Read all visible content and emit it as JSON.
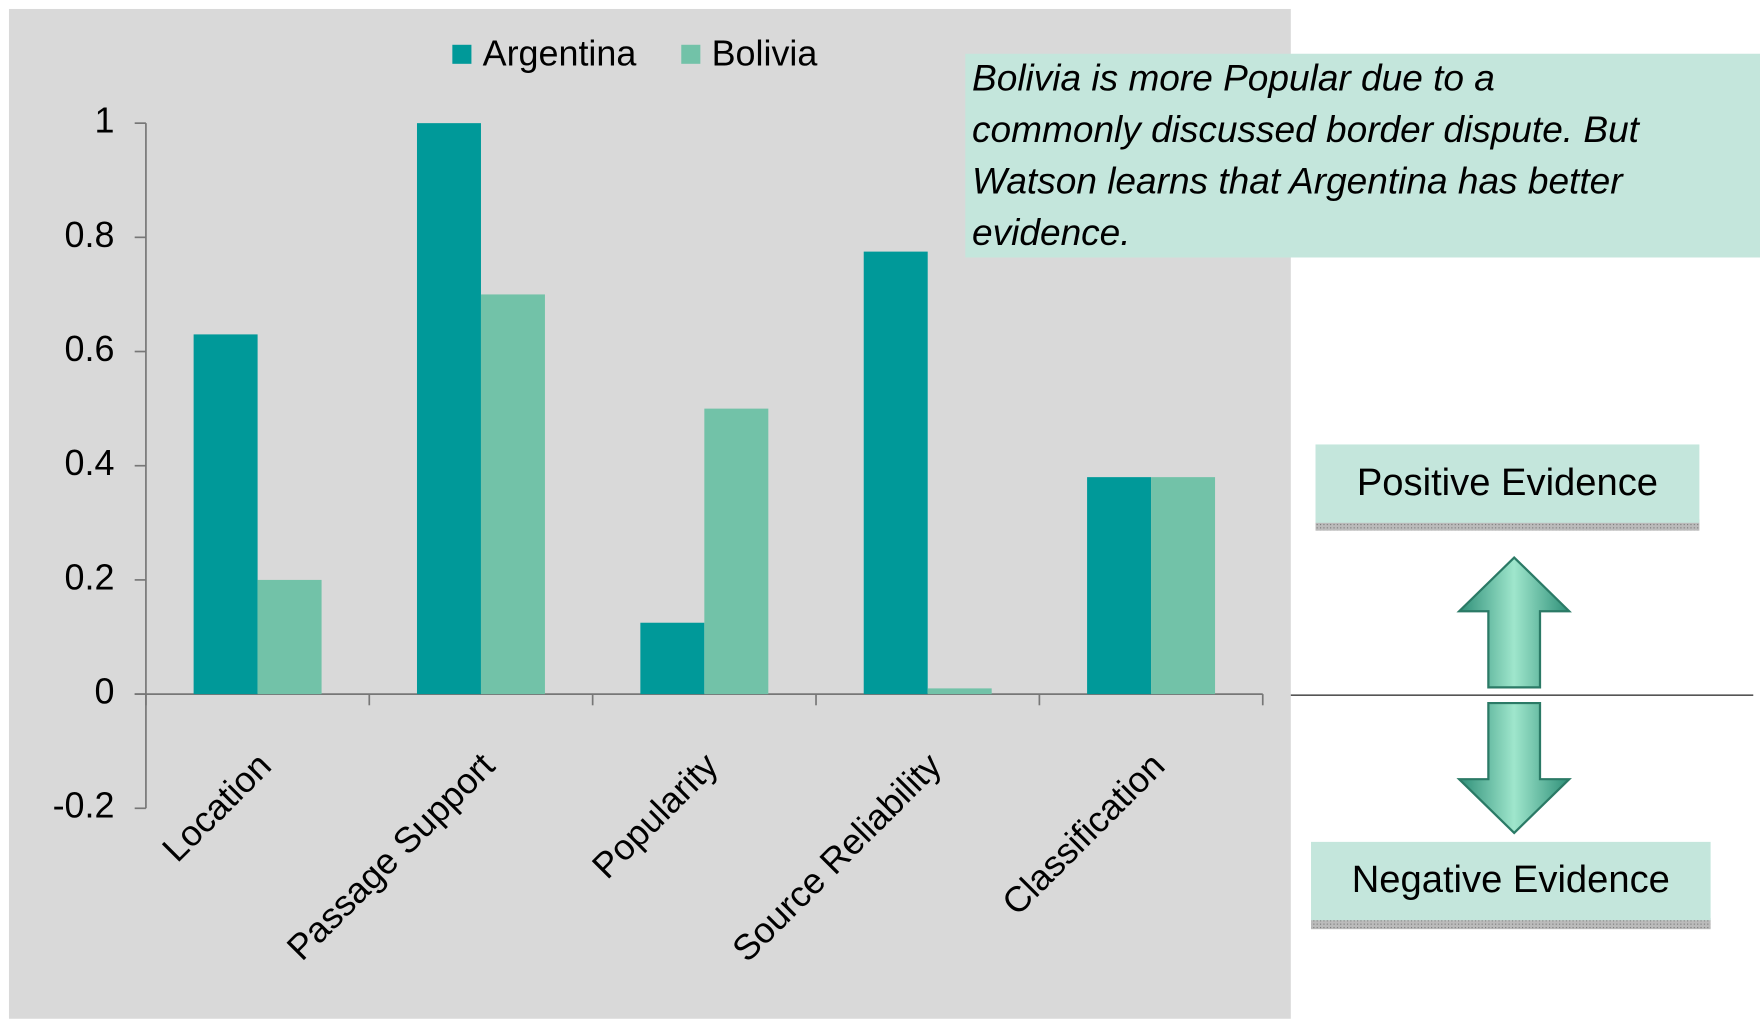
{
  "chart_data": {
    "type": "bar",
    "categories": [
      "Location",
      "Passage Support",
      "Popularity",
      "Source Reliability",
      "Classification"
    ],
    "series": [
      {
        "name": "Argentina",
        "color": "#009999",
        "values": [
          0.63,
          1.0,
          0.125,
          0.775,
          0.38
        ]
      },
      {
        "name": "Bolivia",
        "color": "#72c2a8",
        "values": [
          0.2,
          0.7,
          0.5,
          0.01,
          0.38
        ]
      }
    ],
    "ylim": [
      -0.2,
      1
    ],
    "yticks": [
      -0.2,
      0,
      0.2,
      0.4,
      0.6,
      0.8,
      1
    ],
    "legend": "top",
    "annotations": {
      "note_lines": [
        "Bolivia is more Popular due to a",
        "commonly discussed border dispute. But",
        "Watson learns that Argentina has better",
        "evidence."
      ],
      "positive": "Positive Evidence",
      "negative": "Negative Evidence"
    }
  }
}
